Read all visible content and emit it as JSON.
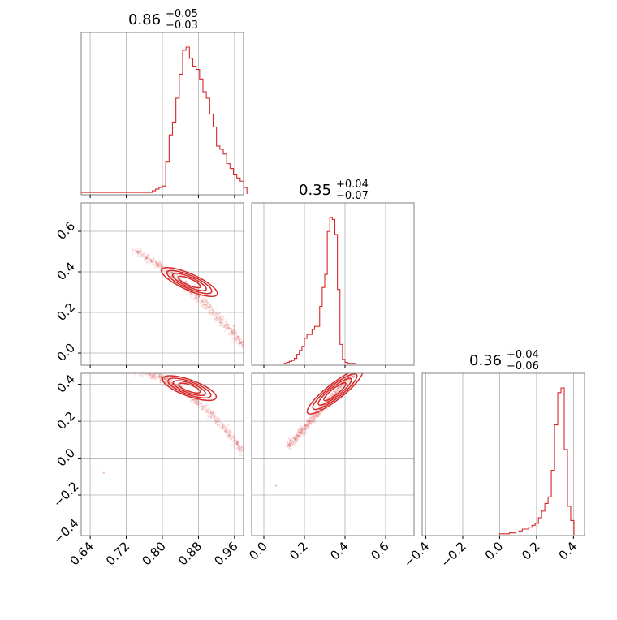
{
  "chart_data": {
    "type": "corner",
    "color": "#d62728",
    "grid": true,
    "variables": [
      {
        "range": [
          0.62,
          0.98
        ],
        "ticks": [
          "0.64",
          "0.72",
          "0.80",
          "0.88",
          "0.96"
        ],
        "tick_values": [
          0.64,
          0.72,
          0.8,
          0.88,
          0.96
        ],
        "title": {
          "main": "0.86",
          "plus": "+0.05",
          "minus": "−0.03"
        },
        "hist": {
          "bin_start": 0.62,
          "bin_width": 0.0075,
          "counts": [
            1,
            1,
            1,
            1,
            1,
            1,
            1,
            1,
            1,
            1,
            1,
            1,
            1,
            1,
            1,
            1,
            1,
            1,
            1,
            1,
            1,
            2,
            3,
            4,
            5,
            20,
            37,
            45,
            60,
            75,
            90,
            92,
            85,
            80,
            78,
            72,
            64,
            60,
            50,
            42,
            30,
            28,
            25,
            19,
            16,
            12,
            10,
            8,
            4
          ]
        }
      },
      {
        "range": [
          -0.06,
          0.74
        ],
        "ticks": [
          "0.0",
          "0.2",
          "0.4",
          "0.6"
        ],
        "tick_values": [
          0.0,
          0.2,
          0.4,
          0.6
        ],
        "title": {
          "main": "0.35",
          "plus": "+0.04",
          "minus": "−0.07"
        },
        "hist": {
          "bin_start": 0.1,
          "bin_width": 0.0125,
          "counts": [
            1,
            2,
            3,
            4,
            6,
            10,
            14,
            18,
            26,
            30,
            30,
            35,
            38,
            38,
            58,
            77,
            90,
            133,
            147,
            145,
            130,
            75,
            20,
            5,
            2,
            1,
            1,
            1
          ]
        }
      },
      {
        "range": [
          -0.42,
          0.46
        ],
        "ticks": [
          "−0.4",
          "−0.2",
          "0.0",
          "0.2",
          "0.4"
        ],
        "tick_values": [
          -0.4,
          -0.2,
          0.0,
          0.2,
          0.4
        ],
        "title": {
          "main": "0.36",
          "plus": "+0.04",
          "minus": "−0.06"
        },
        "hist": {
          "bin_start": 0.0,
          "bin_width": 0.0175,
          "counts": [
            1,
            1,
            1,
            2,
            2,
            3,
            4,
            6,
            6,
            8,
            10,
            12,
            18,
            25,
            33,
            40,
            68,
            116,
            150,
            155,
            90,
            30,
            15
          ]
        }
      }
    ]
  }
}
